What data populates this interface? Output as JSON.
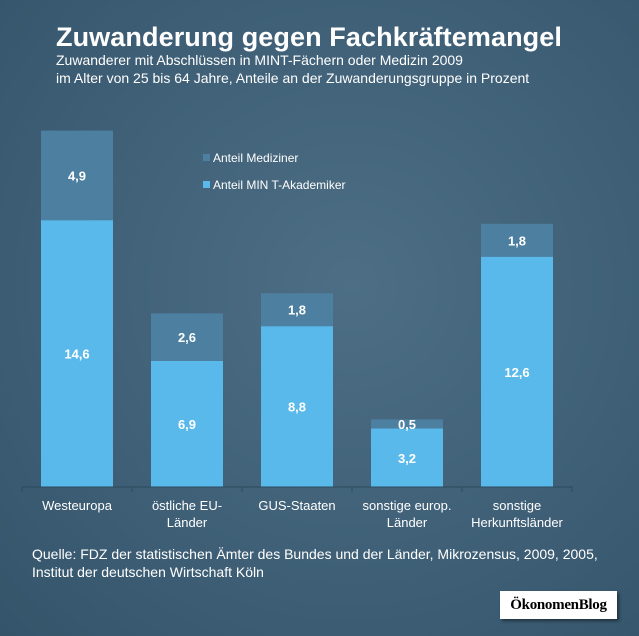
{
  "header": {
    "title": "Zuwanderung gegen Fachkräftemangel",
    "subtitle_line1": "Zuwanderer mit Abschlüssen in MINT-Fächern oder Medizin 2009",
    "subtitle_line2": "im Alter von 25 bis 64 Jahre, Anteile an der Zuwanderungsgruppe in Prozent"
  },
  "chart_data": {
    "type": "bar",
    "stacked": true,
    "categories": [
      [
        "Westeuropa"
      ],
      [
        "östliche EU-",
        "Länder"
      ],
      [
        "GUS-Staaten"
      ],
      [
        "sonstige europ.",
        "Länder"
      ],
      [
        "sonstige",
        "Herkunftsländer"
      ]
    ],
    "series": [
      {
        "name": "Anteil MIN T-Akademiker",
        "values": [
          14.6,
          6.9,
          8.8,
          3.2,
          12.6
        ],
        "labels": [
          "14,6",
          "6,9",
          "8,8",
          "3,2",
          "12,6"
        ],
        "color": "#5ab9eb"
      },
      {
        "name": "Anteil Mediziner",
        "values": [
          4.9,
          2.6,
          1.8,
          0.5,
          1.8
        ],
        "labels": [
          "4,9",
          "2,6",
          "1,8",
          "0,5",
          "1,8"
        ],
        "color": "#4d7fa0"
      }
    ],
    "legend_order": [
      1,
      0
    ],
    "legend_position": "top-center",
    "ylim": [
      0,
      20.9
    ],
    "grid": false,
    "xlabel": "",
    "ylabel": ""
  },
  "source": {
    "text": "Quelle: FDZ der statistischen Ämter des Bundes und der Länder, Mikrozensus, 2009, 2005, Institut der deutschen Wirtschaft Köln"
  },
  "logo": {
    "text": "ÖkonomenBlog"
  },
  "colors": {
    "background": "#3f6077",
    "axis": "#2c4a5c"
  }
}
